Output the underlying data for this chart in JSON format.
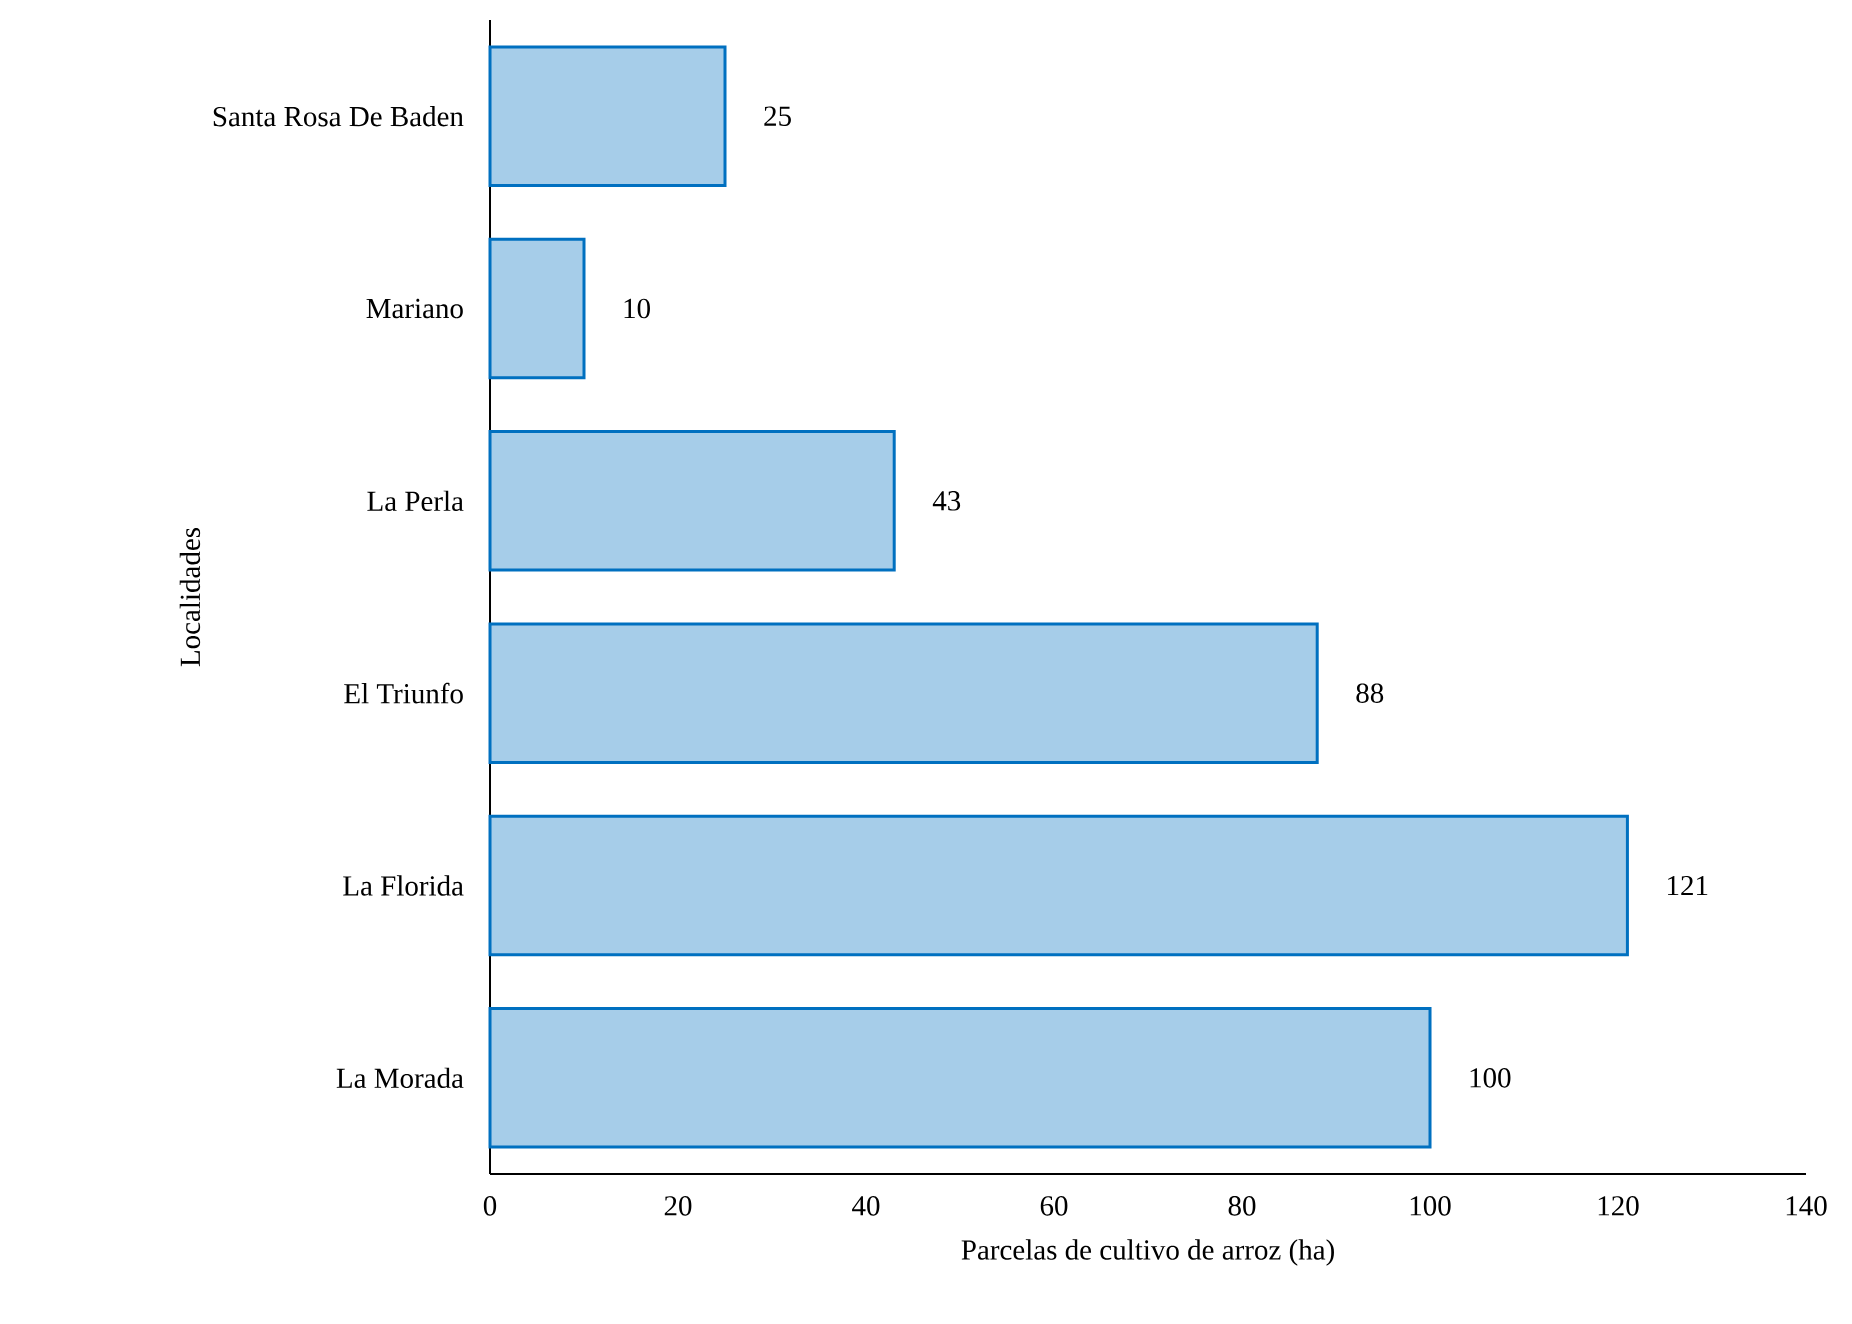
{
  "chart_data": {
    "type": "bar",
    "orientation": "horizontal",
    "categories": [
      "Santa Rosa De Baden",
      "Mariano",
      "La Perla",
      "El Triunfo",
      "La Florida",
      "La Morada"
    ],
    "values": [
      25,
      10,
      43,
      88,
      121,
      100
    ],
    "color": "#0070c0",
    "xlim": [
      0,
      140
    ],
    "xticks": [
      0,
      20,
      40,
      60,
      80,
      100,
      120,
      140
    ],
    "xlabel": "Parcelas de cultivo de arroz (ha)",
    "ylabel": "Localidades",
    "data_labels": true
  }
}
